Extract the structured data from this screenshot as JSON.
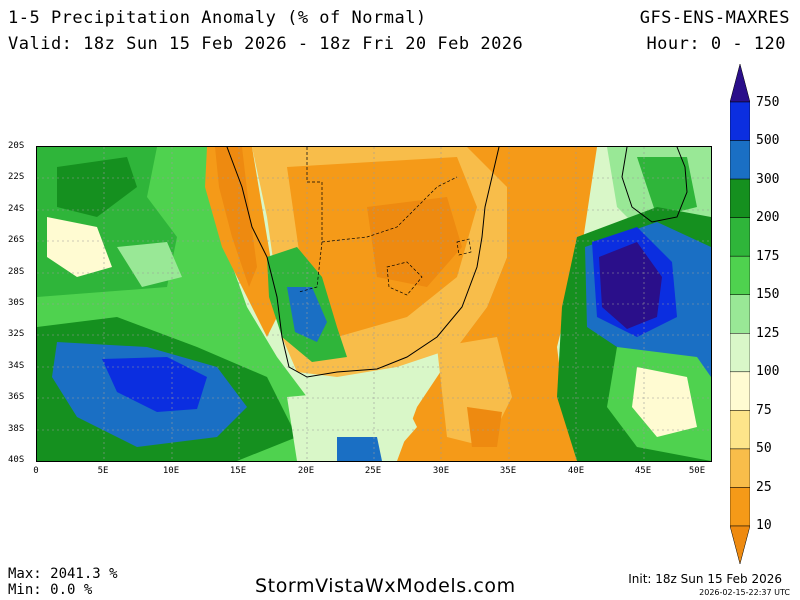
{
  "header": {
    "title": "1-5 Precipitation Anomaly (% of Normal)",
    "valid": "Valid: 18z Sun 15 Feb 2026 - 18z Fri 20 Feb 2026",
    "model": "GFS-ENS-MAXRES",
    "hours": "Hour: 0 - 120"
  },
  "axes": {
    "lat_labels": [
      "20S",
      "22S",
      "24S",
      "26S",
      "28S",
      "30S",
      "32S",
      "34S",
      "36S",
      "38S",
      "40S"
    ],
    "lon_labels": [
      "0",
      "5E",
      "10E",
      "15E",
      "20E",
      "25E",
      "30E",
      "35E",
      "40E",
      "45E",
      "50E"
    ]
  },
  "colorbar": {
    "levels": [
      "750",
      "500",
      "300",
      "200",
      "175",
      "150",
      "125",
      "100",
      "75",
      "50",
      "25",
      "10"
    ],
    "colors": [
      "#2a0f8a",
      "#0b2ee0",
      "#1a6fc4",
      "#15901f",
      "#2fb53a",
      "#4fd24f",
      "#99e896",
      "#d9f7c8",
      "#fffbd2",
      "#fde58a",
      "#f8bd4a",
      "#f59a18",
      "#ee8a10"
    ]
  },
  "colors": {
    "dry_strong": "#ee8a10",
    "dry": "#f59a18",
    "near_normal": "#fffbd2",
    "wet": "#2fb53a",
    "very_wet": "#1a6fc4",
    "extreme": "#2a0f8a"
  },
  "footer": {
    "max": "Max: 2041.3 %",
    "min": "Min: 0.0 %",
    "brand": "StormVistaWxModels.com",
    "init": "Init: 18z Sun 15 Feb 2026",
    "timestamp": "2026-02-15-22:37 UTC"
  }
}
